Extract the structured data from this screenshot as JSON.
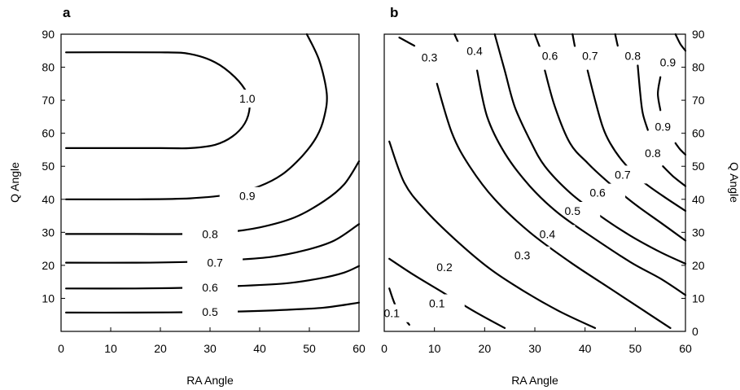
{
  "chart_data": [
    {
      "panel": "a",
      "type": "contour",
      "xlabel": "RA Angle",
      "ylabel": "Q Angle",
      "xlim": [
        0,
        60
      ],
      "ylim": [
        0,
        90
      ],
      "xticks": [
        "0",
        "10",
        "20",
        "30",
        "40",
        "50",
        "60"
      ],
      "yticks": [
        "10",
        "20",
        "30",
        "40",
        "50",
        "60",
        "70",
        "80",
        "90"
      ],
      "ytick_side": "left",
      "contours": [
        {
          "level": "1.0",
          "points": [
            [
              1,
              84.5
            ],
            [
              20,
              84.5
            ],
            [
              26,
              84
            ],
            [
              31,
              81.5
            ],
            [
              35,
              77
            ],
            [
              37.5,
              72
            ],
            [
              38,
              68
            ],
            [
              37,
              63
            ],
            [
              34.5,
              59
            ],
            [
              31,
              56.5
            ],
            [
              26,
              55.5
            ],
            [
              20,
              55.5
            ],
            [
              1,
              55.5
            ]
          ],
          "label_at": [
            37.5,
            70.5
          ]
        },
        {
          "level": "0.9",
          "points": [
            [
              49.5,
              90
            ],
            [
              52,
              82
            ],
            [
              53.5,
              72
            ],
            [
              53,
              65
            ],
            [
              51.5,
              59
            ],
            [
              48.5,
              53
            ],
            [
              44.5,
              47.5
            ],
            [
              40,
              44
            ],
            [
              34,
              41.5
            ],
            [
              26,
              40.3
            ],
            [
              15,
              40
            ],
            [
              1,
              40
            ]
          ],
          "label_at": [
            37.5,
            41
          ]
        },
        {
          "level": "0.8",
          "points": [
            [
              1,
              29.5
            ],
            [
              15,
              29.5
            ],
            [
              25,
              29.5
            ],
            [
              33,
              30
            ],
            [
              40,
              31.5
            ],
            [
              47,
              34.5
            ],
            [
              53,
              39.5
            ],
            [
              57,
              44.5
            ],
            [
              60,
              51.5
            ]
          ],
          "label_at": [
            30,
            29.5
          ]
        },
        {
          "level": "0.7",
          "points": [
            [
              1,
              20.8
            ],
            [
              15,
              20.8
            ],
            [
              25,
              21
            ],
            [
              33,
              21.5
            ],
            [
              42,
              22.5
            ],
            [
              49,
              24.5
            ],
            [
              55,
              27.5
            ],
            [
              60,
              32.5
            ]
          ],
          "label_at": [
            31,
            20.8
          ]
        },
        {
          "level": "0.6",
          "points": [
            [
              1,
              13
            ],
            [
              15,
              13
            ],
            [
              25,
              13.2
            ],
            [
              35,
              13.7
            ],
            [
              45,
              14.5
            ],
            [
              52,
              16
            ],
            [
              57,
              17.8
            ],
            [
              60,
              19.8
            ]
          ],
          "label_at": [
            30,
            13.3
          ]
        },
        {
          "level": "0.5",
          "points": [
            [
              1,
              5.7
            ],
            [
              15,
              5.7
            ],
            [
              25,
              5.8
            ],
            [
              35,
              6
            ],
            [
              45,
              6.5
            ],
            [
              53,
              7.2
            ],
            [
              60,
              8.7
            ]
          ],
          "label_at": [
            30,
            5.9
          ]
        }
      ]
    },
    {
      "panel": "b",
      "type": "contour",
      "xlabel": "RA Angle",
      "ylabel": "Q Angle",
      "xlim": [
        0,
        60
      ],
      "ylim": [
        0,
        90
      ],
      "xticks": [
        "0",
        "10",
        "20",
        "30",
        "40",
        "50",
        "60"
      ],
      "yticks": [
        "0",
        "10",
        "20",
        "30",
        "40",
        "50",
        "60",
        "70",
        "80",
        "90"
      ],
      "ytick_side": "right",
      "contours": [
        {
          "level": "0.1",
          "points": [
            [
              1,
              13
            ],
            [
              2.5,
              7
            ],
            [
              5,
              2
            ]
          ],
          "label_at": [
            1.5,
            5.5
          ]
        },
        {
          "level": "0.1",
          "points": [
            [
              1,
              22
            ],
            [
              6,
              17
            ],
            [
              12,
              11.5
            ],
            [
              18,
              6
            ],
            [
              24,
              1
            ]
          ],
          "label_at": [
            10.5,
            8.5
          ]
        },
        {
          "level": "0.2",
          "points": [
            [
              1,
              57.5
            ],
            [
              4,
              45
            ],
            [
              8,
              37
            ],
            [
              14,
              28
            ],
            [
              21,
              19
            ],
            [
              28,
              12
            ],
            [
              35,
              6
            ],
            [
              42,
              1
            ]
          ],
          "label_at": [
            12,
            19.5
          ]
        },
        {
          "level": "0.3",
          "points": [
            [
              3,
              89
            ],
            [
              6,
              86.5
            ]
          ],
          "label_at": [
            9,
            83
          ]
        },
        {
          "level": "0.3",
          "points": [
            [
              10.5,
              75
            ],
            [
              13.5,
              60
            ],
            [
              17,
              50
            ],
            [
              22,
              40
            ],
            [
              29,
              30
            ],
            [
              37,
              21
            ],
            [
              45,
              13
            ],
            [
              52,
              6
            ],
            [
              57,
              1
            ]
          ],
          "label_at": [
            27.5,
            23
          ]
        },
        {
          "level": "0.4",
          "points": [
            [
              14,
              90
            ],
            [
              15,
              86.5
            ]
          ],
          "label_at": [
            18,
            85
          ]
        },
        {
          "level": "0.4",
          "points": [
            [
              18.5,
              79
            ],
            [
              20.5,
              65
            ],
            [
              24,
              54
            ],
            [
              29,
              44
            ],
            [
              34.5,
              36
            ],
            [
              41,
              29
            ],
            [
              49,
              21
            ],
            [
              55,
              16
            ],
            [
              60,
              11
            ]
          ],
          "label_at": [
            32.5,
            29.5
          ]
        },
        {
          "level": "0.5",
          "points": [
            [
              22,
              90
            ],
            [
              24,
              79
            ],
            [
              26,
              68
            ],
            [
              29,
              58
            ],
            [
              32,
              50
            ],
            [
              37,
              42
            ],
            [
              43,
              35
            ],
            [
              49,
              29
            ],
            [
              55,
              24
            ],
            [
              60,
              20.5
            ]
          ],
          "label_at": [
            37.5,
            36.5
          ]
        },
        {
          "level": "0.6",
          "points": [
            [
              30,
              90
            ],
            [
              31,
              86
            ]
          ],
          "label_at": [
            33,
            83.5
          ]
        },
        {
          "level": "0.6",
          "points": [
            [
              32,
              79
            ],
            [
              34,
              68
            ],
            [
              37,
              57
            ],
            [
              40.5,
              51
            ],
            [
              44,
              46
            ],
            [
              49.5,
              39
            ],
            [
              55,
              33
            ],
            [
              60,
              27.5
            ]
          ],
          "label_at": [
            42.5,
            42
          ]
        },
        {
          "level": "0.7",
          "points": [
            [
              37.5,
              90
            ],
            [
              38,
              86
            ]
          ],
          "label_at": [
            41,
            83.5
          ]
        },
        {
          "level": "0.7",
          "points": [
            [
              40.5,
              79
            ],
            [
              42,
              70
            ],
            [
              43.5,
              62
            ],
            [
              45,
              57
            ],
            [
              47.5,
              51.5
            ],
            [
              51,
              46
            ],
            [
              55.5,
              41
            ],
            [
              60,
              36.5
            ]
          ],
          "label_at": [
            47.5,
            47.5
          ]
        },
        {
          "level": "0.8",
          "points": [
            [
              46,
              90
            ],
            [
              46.5,
              86.5
            ]
          ],
          "label_at": [
            49.5,
            83.5
          ]
        },
        {
          "level": "0.8",
          "points": [
            [
              50.5,
              80.5
            ],
            [
              51,
              72
            ],
            [
              51.5,
              66
            ],
            [
              52.5,
              61
            ]
          ],
          "label_at": [
            53.5,
            54
          ]
        },
        {
          "level": "0.8",
          "points": [
            [
              55.5,
              50
            ],
            [
              57.5,
              47
            ],
            [
              60,
              44
            ]
          ],
          "label_at": null
        },
        {
          "level": "0.9",
          "points": [
            [
              58,
              90
            ],
            [
              59,
              87
            ],
            [
              60,
              85
            ]
          ],
          "label_at": [
            56.5,
            81.5
          ]
        },
        {
          "level": "0.9",
          "points": [
            [
              55,
              77
            ],
            [
              54.5,
              72
            ],
            [
              55,
              67
            ]
          ],
          "label_at": [
            55.5,
            62
          ]
        },
        {
          "level": "0.9",
          "points": [
            [
              58,
              57
            ],
            [
              59,
              55
            ],
            [
              60,
              53.5
            ]
          ],
          "label_at": null
        }
      ]
    }
  ]
}
